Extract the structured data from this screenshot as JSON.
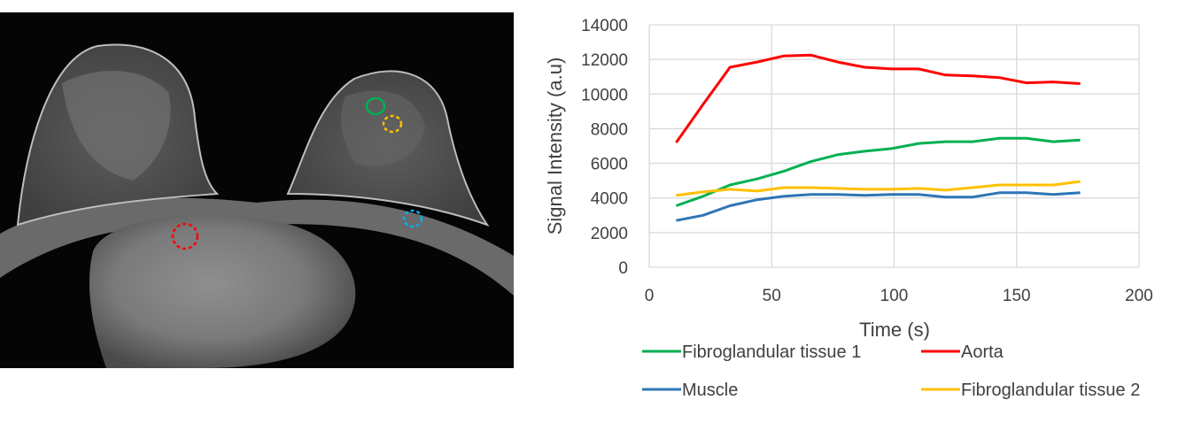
{
  "chart_data": {
    "type": "line",
    "xlabel": "Time (s)",
    "ylabel": "Signal Intensity (a.u)",
    "xlim": [
      0,
      200
    ],
    "ylim": [
      0,
      14000
    ],
    "xticks": [
      0,
      50,
      100,
      150,
      200
    ],
    "yticks": [
      0,
      2000,
      4000,
      6000,
      8000,
      10000,
      12000,
      14000
    ],
    "grid": true,
    "legend_position": "bottom",
    "x": [
      11,
      22,
      33,
      44,
      55,
      66,
      77,
      88,
      99,
      110,
      121,
      132,
      143,
      154,
      165,
      176
    ],
    "series": [
      {
        "name": "Fibroglandular tissue 1",
        "color": "#00b050",
        "values": [
          3550,
          4100,
          4750,
          5100,
          5550,
          6100,
          6500,
          6700,
          6850,
          7150,
          7250,
          7250,
          7450,
          7450,
          7250,
          7350
        ]
      },
      {
        "name": "Aorta",
        "color": "#ff0000",
        "values": [
          7200,
          9400,
          11550,
          11850,
          12200,
          12250,
          11850,
          11550,
          11450,
          11450,
          11100,
          11050,
          10950,
          10650,
          10700,
          10600
        ]
      },
      {
        "name": "Muscle",
        "color": "#2e75b6",
        "values": [
          2700,
          3000,
          3550,
          3900,
          4100,
          4200,
          4200,
          4150,
          4200,
          4200,
          4050,
          4050,
          4300,
          4300,
          4200,
          4300
        ]
      },
      {
        "name": "Fibroglandular tissue 2",
        "color": "#ffc000",
        "values": [
          4150,
          4350,
          4500,
          4400,
          4600,
          4600,
          4550,
          4500,
          4500,
          4550,
          4450,
          4600,
          4750,
          4750,
          4750,
          4950
        ]
      }
    ]
  },
  "mri_image": {
    "roi_markers": [
      {
        "color": "#00b050"
      },
      {
        "color": "#ffc000"
      },
      {
        "color": "#00b0f0"
      },
      {
        "color": "#ff0000"
      }
    ]
  }
}
